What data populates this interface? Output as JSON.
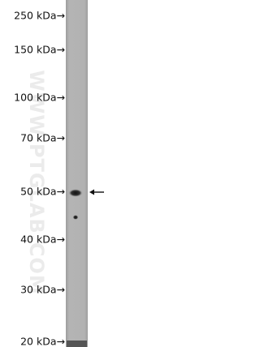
{
  "markers": [
    "250 kDa→",
    "150 kDa→",
    "100 kDa→",
    "70 kDa→",
    "50 kDa→",
    "40 kDa→",
    "30 kDa→",
    "20 kDa→"
  ],
  "watermark": "WWW.PTGLAB.COM"
}
